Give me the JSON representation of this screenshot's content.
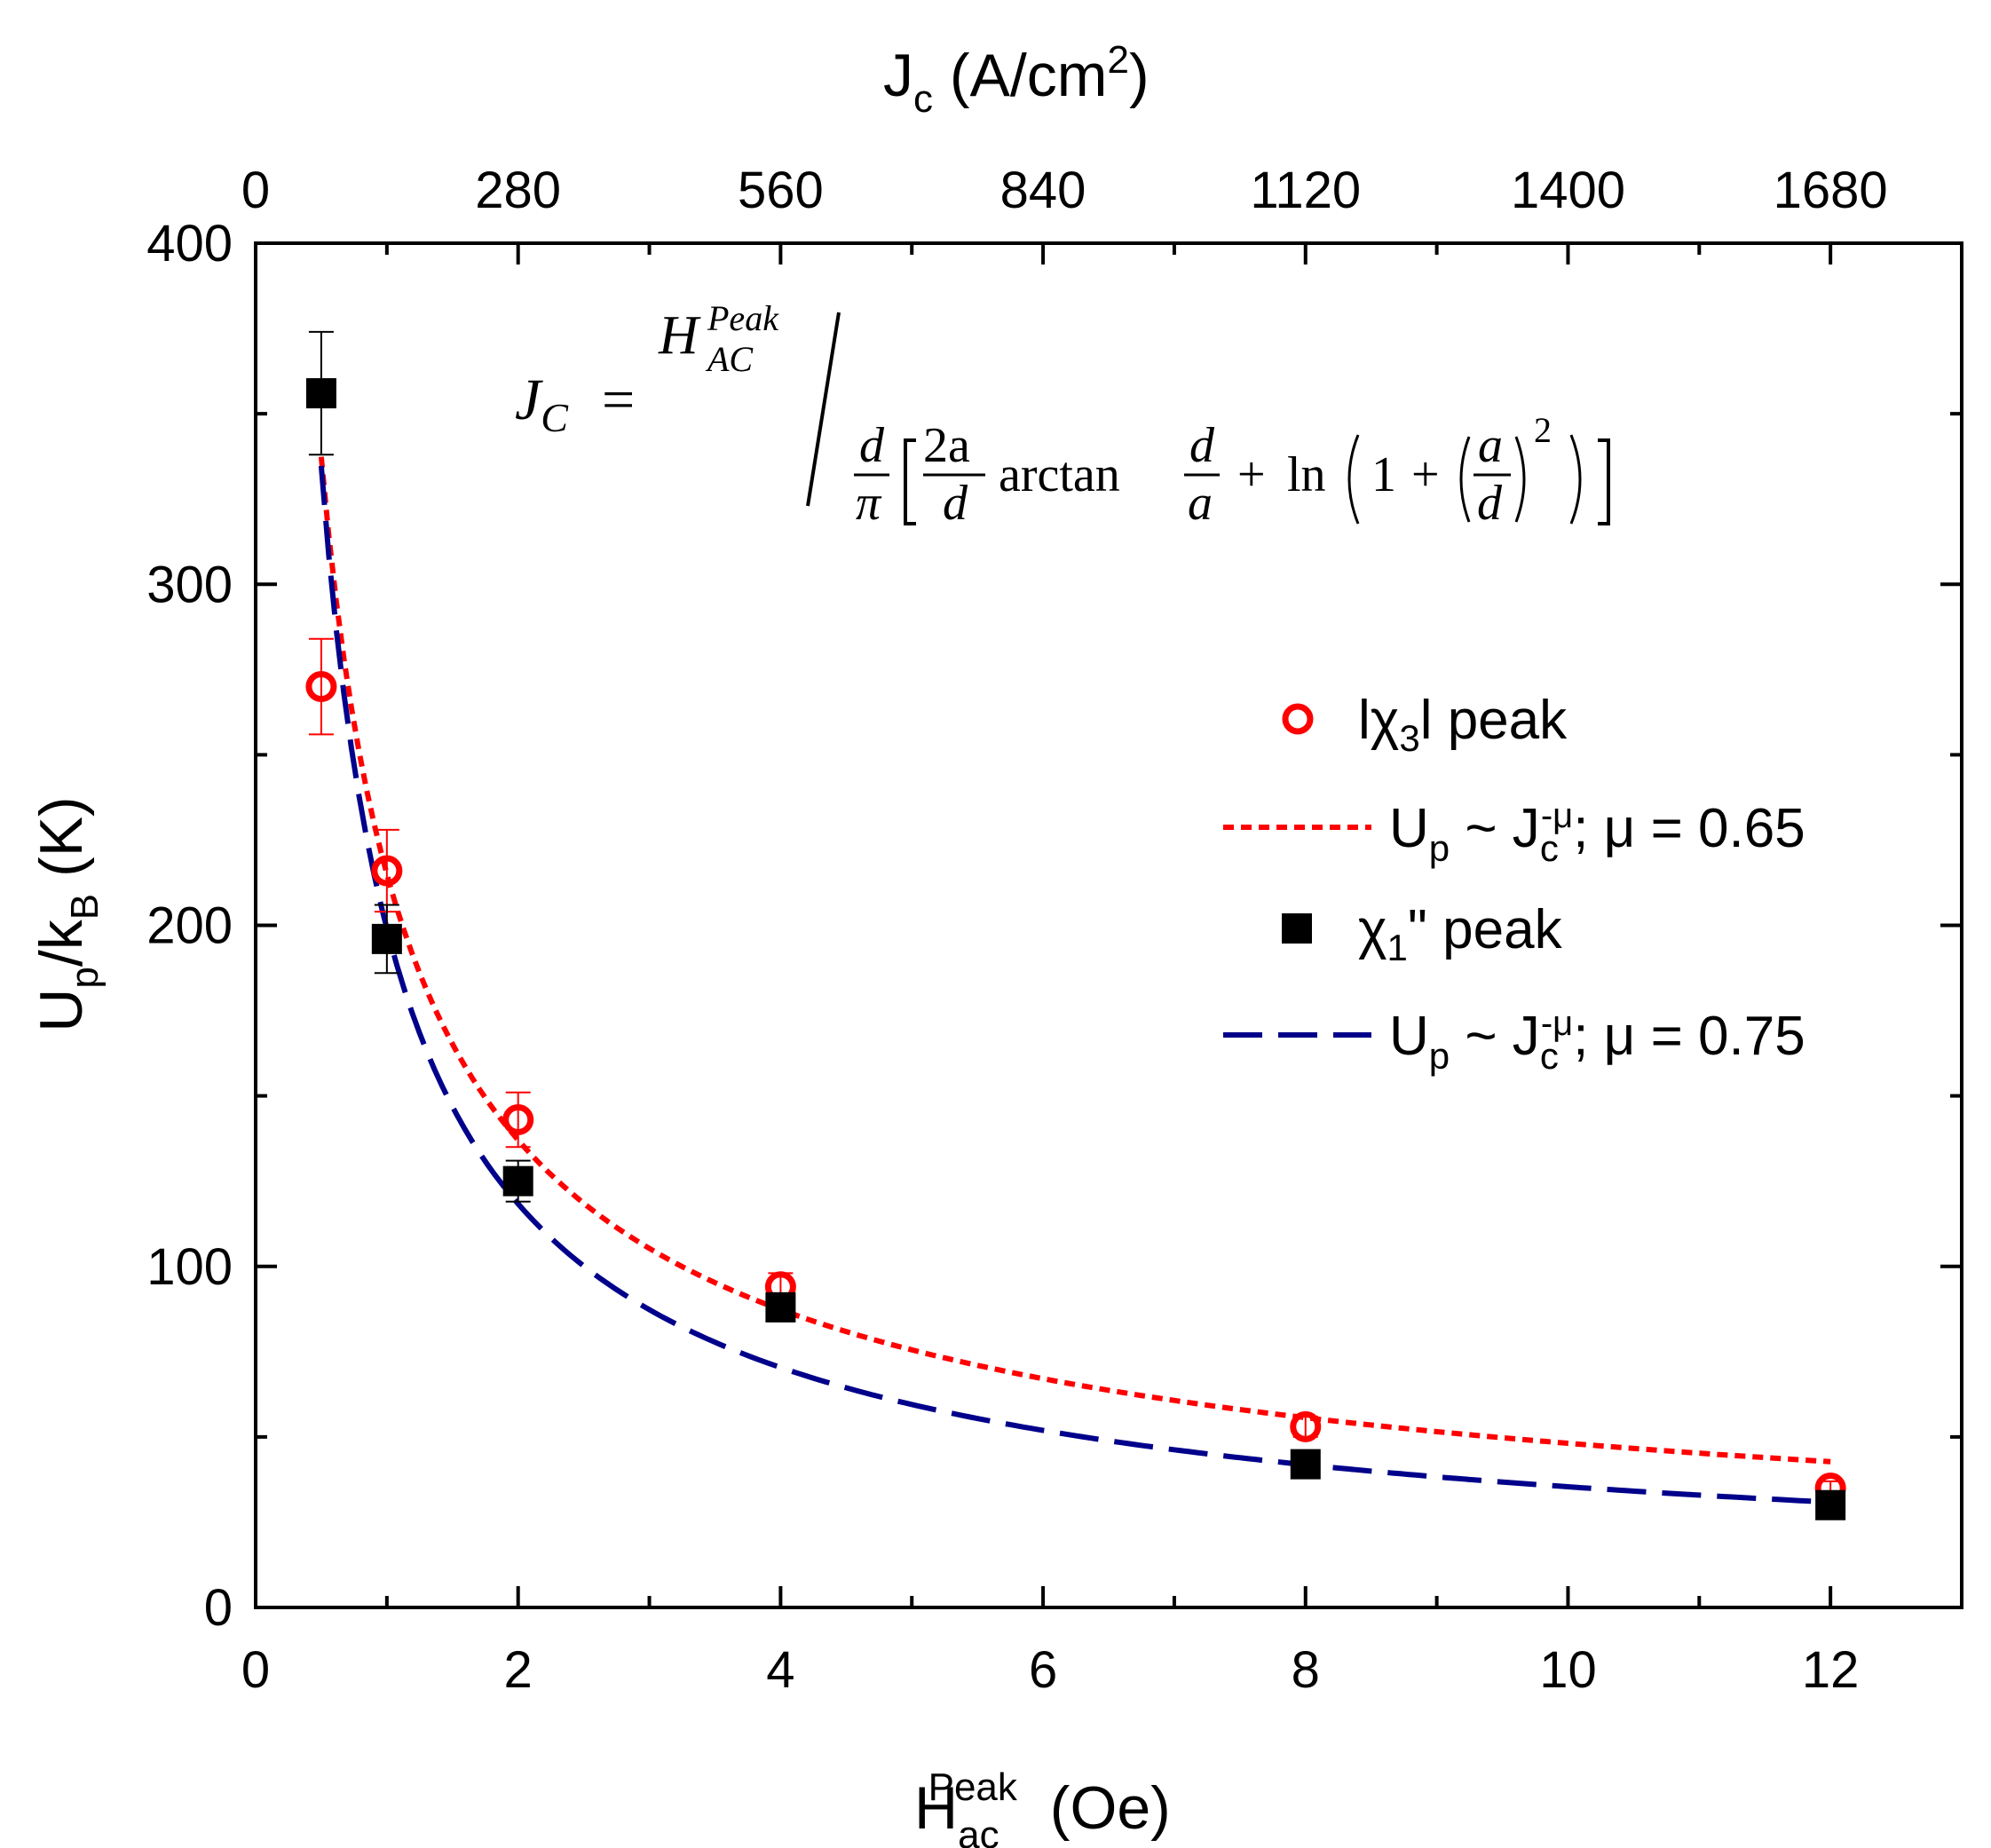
{
  "chart_data": {
    "type": "scatter",
    "title": "",
    "xlabel": {
      "main": "H",
      "sup": "Peak",
      "sub": "ac",
      "unit": "(Oe)"
    },
    "ylabel": {
      "main": "U",
      "sub": "p",
      "mid": "/k",
      "sub2": "B",
      "unit": "(K)"
    },
    "x2label": {
      "main": "J",
      "sub": "c",
      "unit_pre": "(A/cm",
      "unit_sup": "2",
      "unit_post": ")"
    },
    "xlim": [
      0,
      13
    ],
    "ylim": [
      0,
      400
    ],
    "x2lim": [
      0,
      1820
    ],
    "xticks": [
      0,
      2,
      4,
      6,
      8,
      10,
      12
    ],
    "yticks": [
      0,
      100,
      200,
      300,
      400
    ],
    "x2ticks": [
      0,
      280,
      560,
      840,
      1120,
      1400,
      1680
    ],
    "series": [
      {
        "name": "lχ₃l peak",
        "marker": "open-circle",
        "color": "#ff0000",
        "x": [
          0.5,
          1,
          2,
          4,
          8,
          12
        ],
        "y": [
          270,
          216,
          143,
          94,
          53,
          35
        ],
        "yerr": [
          14,
          12,
          8,
          4,
          3,
          2
        ]
      },
      {
        "name": "χ₁\" peak",
        "marker": "filled-square",
        "color": "#000000",
        "x": [
          0.5,
          1,
          2,
          4,
          8,
          12
        ],
        "y": [
          356,
          196,
          125,
          88,
          42,
          30
        ],
        "yerr": [
          18,
          10,
          6,
          4,
          2,
          2
        ]
      },
      {
        "name": "Uₚ ~ Jᶜ⁻ᵘ; μ = 0.65",
        "style": "dotted-line",
        "color": "#ff0000",
        "model": {
          "a": 215,
          "mu": 0.65,
          "x_start": 0.5,
          "x_end": 12
        }
      },
      {
        "name": "Uₚ ~ Jᶜ⁻ᵘ; μ = 0.75",
        "style": "dashed-line",
        "color": "#00008b",
        "model": {
          "a": 199,
          "mu": 0.75,
          "x_start": 0.5,
          "x_end": 12
        }
      }
    ],
    "legend": {
      "position": "right",
      "entries": [
        {
          "label_pre": "lχ",
          "label_sub": "3",
          "label_post": "l peak"
        },
        {
          "label_pre": "U",
          "label_sub": "p",
          "label_mid": " ~ J",
          "label_sub2": "c",
          "label_sup2": "-μ",
          "label_post": "; μ = 0.65"
        },
        {
          "label_pre": "χ",
          "label_sub": "1",
          "label_post": "\" peak"
        },
        {
          "label_pre": "U",
          "label_sub": "p",
          "label_mid": " ~ J",
          "label_sub2": "c",
          "label_sup2": "-μ",
          "label_post": "; μ = 0.75"
        }
      ]
    },
    "annotation": {
      "lhs": "J",
      "lhs_sub": "C",
      "eq": "=",
      "num": "H",
      "num_sup": "Peak",
      "num_sub": "AC",
      "d": "d",
      "pi": "π",
      "two_a": "2a",
      "arctan": "arctan",
      "a": "a",
      "plus": "+",
      "ln": "ln",
      "one": "1",
      "sq": "2"
    }
  }
}
